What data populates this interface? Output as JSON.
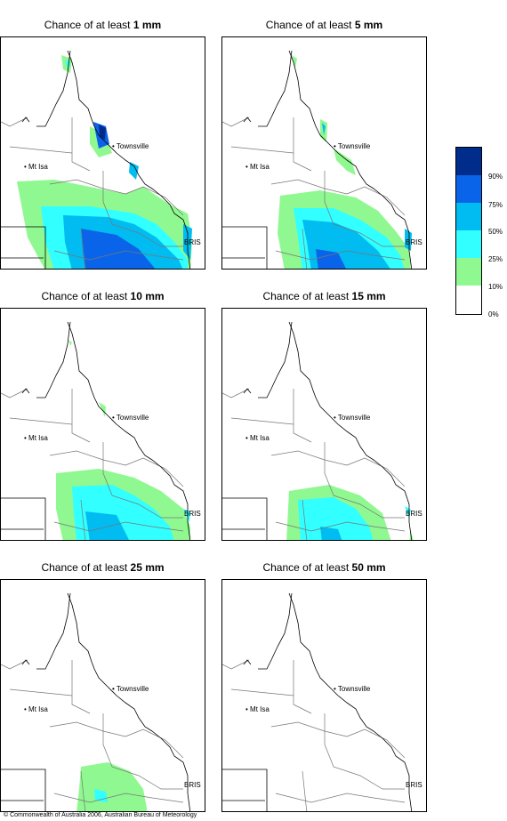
{
  "panels": [
    {
      "prefix": "Chance of at least ",
      "amount": "1 mm"
    },
    {
      "prefix": "Chance of at least ",
      "amount": "5 mm"
    },
    {
      "prefix": "Chance of at least ",
      "amount": "10 mm"
    },
    {
      "prefix": "Chance of at least ",
      "amount": "15 mm"
    },
    {
      "prefix": "Chance of at least ",
      "amount": "25 mm"
    },
    {
      "prefix": "Chance of at least ",
      "amount": "50 mm"
    }
  ],
  "places": {
    "townsville": "Townsville",
    "mt_isa": "Mt Isa",
    "bris": "BRIS"
  },
  "legend": {
    "labels": [
      "90%",
      "75%",
      "50%",
      "25%",
      "10%",
      "0%"
    ],
    "colors": [
      "#002c8c",
      "#0a64ea",
      "#00bcf0",
      "#32ffff",
      "#90f890",
      "#ffffff"
    ]
  },
  "copyright": "© Commonwealth of Australia 2006, Australian Bureau of Meteorology"
}
